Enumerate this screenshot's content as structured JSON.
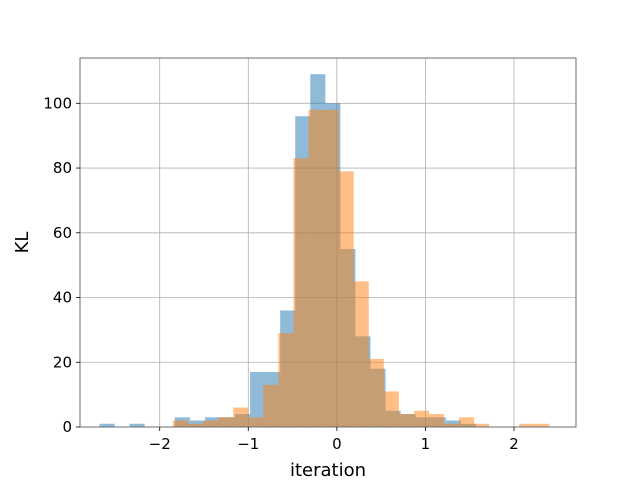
{
  "chart_data": {
    "type": "bar",
    "title": "",
    "xlabel": "iteration",
    "ylabel": "KL",
    "xlim": [
      -2.9,
      2.7
    ],
    "ylim": [
      0,
      114
    ],
    "grid": true,
    "x_ticks": [
      -2,
      -1,
      0,
      1,
      2
    ],
    "x_tick_labels": [
      "−2",
      "−1",
      "0",
      "1",
      "2"
    ],
    "y_ticks": [
      0,
      20,
      40,
      60,
      80,
      100
    ],
    "y_tick_labels": [
      "0",
      "20",
      "40",
      "60",
      "80",
      "100"
    ],
    "series": [
      {
        "color": "#1f77b4",
        "opacity": 0.5,
        "bin_edges": [
          -2.68,
          -2.51,
          -2.34,
          -2.17,
          -2.0,
          -1.83,
          -1.66,
          -1.49,
          -1.32,
          -1.15,
          -0.98,
          -0.81,
          -0.64,
          -0.47,
          -0.3,
          -0.13,
          0.04,
          0.21,
          0.38,
          0.55,
          0.72,
          0.89,
          1.06,
          1.23,
          1.4,
          1.57
        ],
        "values": [
          1,
          0,
          1,
          0,
          0,
          3,
          2,
          3,
          3,
          4,
          17,
          17,
          36,
          96,
          109,
          100,
          55,
          28,
          18,
          5,
          4,
          3,
          3,
          2,
          1
        ]
      },
      {
        "color": "#ff7f0e",
        "opacity": 0.5,
        "bin_edges": [
          -1.85,
          -1.68,
          -1.51,
          -1.34,
          -1.17,
          -1.0,
          -0.83,
          -0.66,
          -0.49,
          -0.32,
          -0.15,
          0.02,
          0.19,
          0.36,
          0.53,
          0.7,
          0.87,
          1.04,
          1.21,
          1.38,
          1.55,
          1.72,
          1.89,
          2.06,
          2.23,
          2.4
        ],
        "values": [
          2,
          1,
          2,
          3,
          6,
          3,
          13,
          29,
          83,
          98,
          98,
          79,
          45,
          21,
          11,
          4,
          5,
          4,
          1,
          3,
          1,
          0,
          0,
          1,
          1
        ]
      }
    ]
  }
}
